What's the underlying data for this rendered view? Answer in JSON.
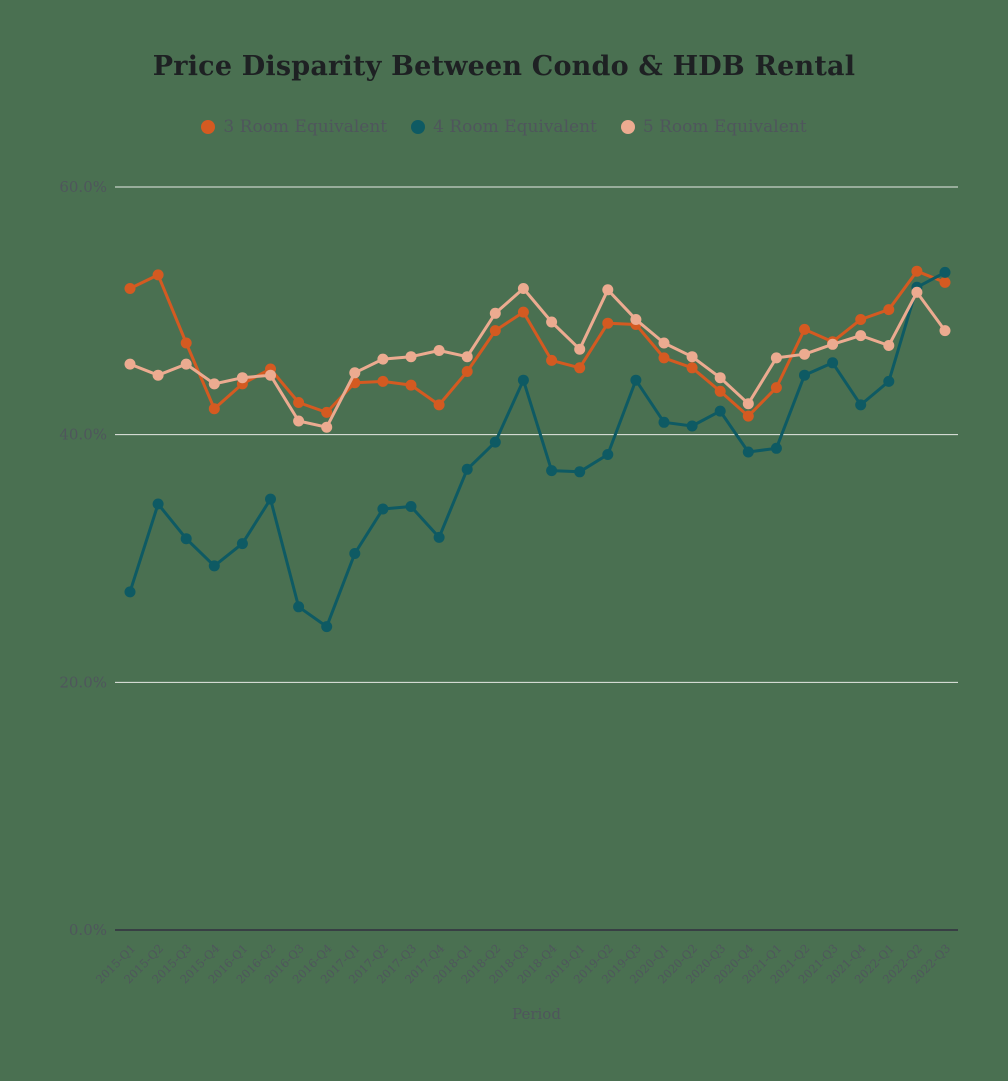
{
  "title": "Price Disparity Between Condo & HDB Rental",
  "legend": {
    "items": [
      {
        "label": "3 Room Equivalent",
        "color": "#d45a21"
      },
      {
        "label": "4 Room Equivalent",
        "color": "#0e5a63"
      },
      {
        "label": "5 Room Equivalent",
        "color": "#ecab90"
      }
    ]
  },
  "colors": {
    "background": "#4a7051",
    "grid_line": "#e7eae5",
    "axis_line": "#383f44",
    "tick_text": "#4f565c",
    "title_text": "#1e2123"
  },
  "chart_data": {
    "type": "line",
    "title": "Price Disparity Between Condo & HDB Rental",
    "xlabel": "Period",
    "ylabel": "",
    "ylim": [
      0,
      60
    ],
    "grid": true,
    "legend_position": "top",
    "yticks": [
      {
        "value": 0,
        "label": "0.0%"
      },
      {
        "value": 20,
        "label": "20.0%"
      },
      {
        "value": 40,
        "label": "40.0%"
      },
      {
        "value": 60,
        "label": "60.0%"
      }
    ],
    "categories": [
      "2015-Q1",
      "2015-Q2",
      "2015-Q3",
      "2015-Q4",
      "2016-Q1",
      "2016-Q2",
      "2016-Q3",
      "2016-Q4",
      "2017-Q1",
      "2017-Q2",
      "2017-Q3",
      "2017-Q4",
      "2018-Q1",
      "2018-Q2",
      "2018-Q3",
      "2018-Q4",
      "2019-Q1",
      "2019-Q2",
      "2019-Q3",
      "2020-Q1",
      "2020-Q2",
      "2020-Q3",
      "2020-Q4",
      "2021-Q1",
      "2021-Q2",
      "2021-Q3",
      "2021-Q4",
      "2022-Q1",
      "2022-Q2",
      "2022-Q3"
    ],
    "series": [
      {
        "name": "3 Room Equivalent",
        "color": "#d45a21",
        "values": [
          51.8,
          52.9,
          47.4,
          42.1,
          44.1,
          45.3,
          42.6,
          41.8,
          44.2,
          44.3,
          44.0,
          42.4,
          45.1,
          48.4,
          49.9,
          46.0,
          45.4,
          49.0,
          48.9,
          46.2,
          45.4,
          43.5,
          41.5,
          43.8,
          48.5,
          47.5,
          49.3,
          50.1,
          53.2,
          52.3
        ]
      },
      {
        "name": "4 Room Equivalent",
        "color": "#0e5a63",
        "values": [
          27.3,
          34.4,
          31.6,
          29.4,
          31.2,
          34.8,
          26.1,
          24.5,
          30.4,
          34.0,
          34.2,
          31.7,
          37.2,
          39.4,
          44.4,
          37.1,
          37.0,
          38.4,
          44.4,
          41.0,
          40.7,
          41.9,
          38.6,
          38.9,
          44.8,
          45.8,
          42.4,
          44.3,
          51.9,
          53.1
        ]
      },
      {
        "name": "5 Room Equivalent",
        "color": "#ecab90",
        "values": [
          45.7,
          44.8,
          45.7,
          44.1,
          44.6,
          44.8,
          41.1,
          40.6,
          45.0,
          46.1,
          46.3,
          46.8,
          46.3,
          49.8,
          51.8,
          49.1,
          46.9,
          51.7,
          49.3,
          47.4,
          46.3,
          44.6,
          42.5,
          46.2,
          46.5,
          47.3,
          48.0,
          47.2,
          51.5,
          48.4
        ]
      }
    ]
  }
}
